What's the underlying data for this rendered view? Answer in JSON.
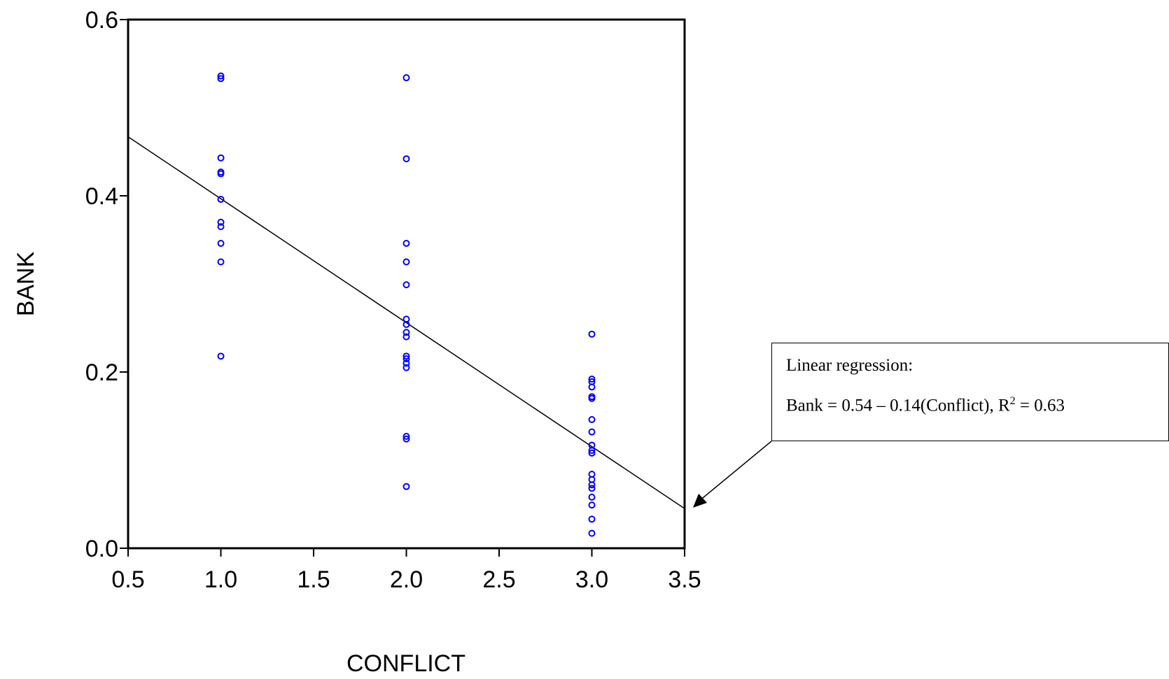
{
  "chart_data": {
    "type": "scatter",
    "xlabel": "CONFLICT",
    "ylabel": "BANK",
    "xlim": [
      0.5,
      3.5
    ],
    "ylim": [
      0.0,
      0.6
    ],
    "xticks": [
      "0.5",
      "1.0",
      "1.5",
      "2.0",
      "2.5",
      "3.0",
      "3.5"
    ],
    "yticks": [
      "0.0",
      "0.2",
      "0.4",
      "0.6"
    ],
    "series": [
      {
        "color": "#0000ff",
        "points": [
          {
            "x": 1.0,
            "y": 0.536
          },
          {
            "x": 1.0,
            "y": 0.533
          },
          {
            "x": 1.0,
            "y": 0.443
          },
          {
            "x": 1.0,
            "y": 0.427
          },
          {
            "x": 1.0,
            "y": 0.425
          },
          {
            "x": 1.0,
            "y": 0.396
          },
          {
            "x": 1.0,
            "y": 0.37
          },
          {
            "x": 1.0,
            "y": 0.365
          },
          {
            "x": 1.0,
            "y": 0.346
          },
          {
            "x": 1.0,
            "y": 0.325
          },
          {
            "x": 1.0,
            "y": 0.218
          },
          {
            "x": 2.0,
            "y": 0.534
          },
          {
            "x": 2.0,
            "y": 0.442
          },
          {
            "x": 2.0,
            "y": 0.346
          },
          {
            "x": 2.0,
            "y": 0.325
          },
          {
            "x": 2.0,
            "y": 0.299
          },
          {
            "x": 2.0,
            "y": 0.26
          },
          {
            "x": 2.0,
            "y": 0.254
          },
          {
            "x": 2.0,
            "y": 0.245
          },
          {
            "x": 2.0,
            "y": 0.24
          },
          {
            "x": 2.0,
            "y": 0.218
          },
          {
            "x": 2.0,
            "y": 0.215
          },
          {
            "x": 2.0,
            "y": 0.21
          },
          {
            "x": 2.0,
            "y": 0.205
          },
          {
            "x": 2.0,
            "y": 0.127
          },
          {
            "x": 2.0,
            "y": 0.124
          },
          {
            "x": 2.0,
            "y": 0.07
          },
          {
            "x": 3.0,
            "y": 0.243
          },
          {
            "x": 3.0,
            "y": 0.192
          },
          {
            "x": 3.0,
            "y": 0.189
          },
          {
            "x": 3.0,
            "y": 0.183
          },
          {
            "x": 3.0,
            "y": 0.172
          },
          {
            "x": 3.0,
            "y": 0.17
          },
          {
            "x": 3.0,
            "y": 0.146
          },
          {
            "x": 3.0,
            "y": 0.132
          },
          {
            "x": 3.0,
            "y": 0.117
          },
          {
            "x": 3.0,
            "y": 0.111
          },
          {
            "x": 3.0,
            "y": 0.108
          },
          {
            "x": 3.0,
            "y": 0.084
          },
          {
            "x": 3.0,
            "y": 0.078
          },
          {
            "x": 3.0,
            "y": 0.072
          },
          {
            "x": 3.0,
            "y": 0.068
          },
          {
            "x": 3.0,
            "y": 0.058
          },
          {
            "x": 3.0,
            "y": 0.049
          },
          {
            "x": 3.0,
            "y": 0.033
          },
          {
            "x": 3.0,
            "y": 0.017
          }
        ]
      }
    ],
    "regression_line": {
      "x": [
        0.5,
        3.5
      ],
      "y": [
        0.467,
        0.045
      ],
      "color": "#000000"
    },
    "annotation": {
      "line1": "Linear regression:",
      "equation": "Bank = 0.54 – 0.14(Conflict), R",
      "superscript": "2",
      "suffix": " = 0.63"
    },
    "grid": false,
    "legend": "none"
  }
}
